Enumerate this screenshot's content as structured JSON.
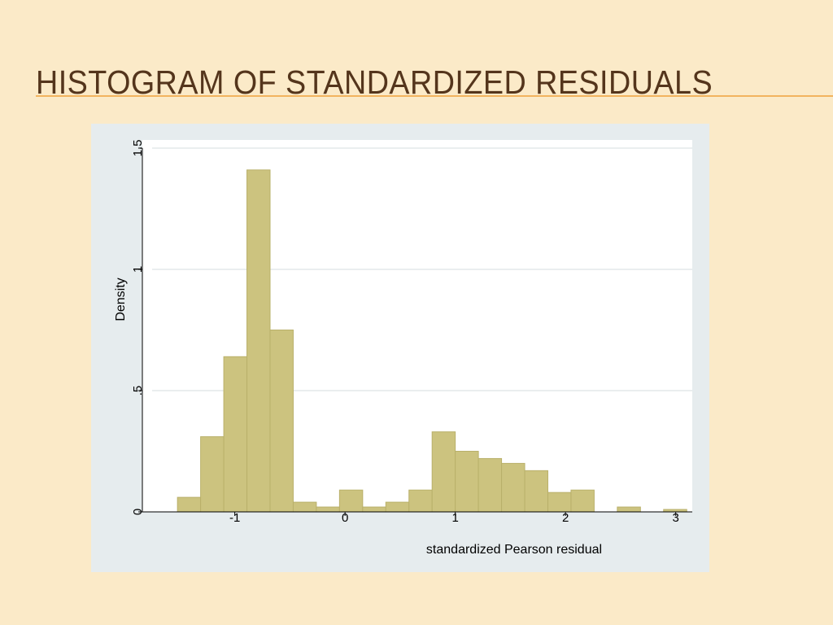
{
  "slide": {
    "title": "HISTOGRAM OF STANDARDIZED RESIDUALS"
  },
  "colors": {
    "background": "#fbeac8",
    "title": "#54351c",
    "accent_rule": "#f2b45f",
    "plot_frame": "#e6ecee",
    "plot_area": "#ffffff",
    "bar_fill": "#ccc37f",
    "bar_stroke": "#b9b06a"
  },
  "chart_data": {
    "type": "bar",
    "subtype": "histogram",
    "title": "",
    "xlabel": "standardized Pearson residual",
    "ylabel": "Density",
    "xlim": [
      -1.75,
      3.15
    ],
    "ylim": [
      0,
      1.5
    ],
    "xticks": [
      -1,
      0,
      1,
      2,
      3
    ],
    "xtick_labels": [
      "-1",
      "0",
      "1",
      "2",
      "3"
    ],
    "yticks": [
      0,
      0.5,
      1,
      1.5
    ],
    "ytick_labels": [
      "0",
      ".5",
      "1",
      "1.5"
    ],
    "grid": "horizontal",
    "bin_width": 0.21,
    "bins": [
      {
        "x0": -1.52,
        "x1": -1.31,
        "density": 0.06
      },
      {
        "x0": -1.31,
        "x1": -1.1,
        "density": 0.31
      },
      {
        "x0": -1.1,
        "x1": -0.89,
        "density": 0.64
      },
      {
        "x0": -0.89,
        "x1": -0.68,
        "density": 1.41
      },
      {
        "x0": -0.68,
        "x1": -0.47,
        "density": 0.75
      },
      {
        "x0": -0.47,
        "x1": -0.26,
        "density": 0.04
      },
      {
        "x0": -0.26,
        "x1": -0.05,
        "density": 0.02
      },
      {
        "x0": -0.05,
        "x1": 0.16,
        "density": 0.09
      },
      {
        "x0": 0.16,
        "x1": 0.37,
        "density": 0.02
      },
      {
        "x0": 0.37,
        "x1": 0.58,
        "density": 0.04
      },
      {
        "x0": 0.58,
        "x1": 0.79,
        "density": 0.09
      },
      {
        "x0": 0.79,
        "x1": 1.0,
        "density": 0.33
      },
      {
        "x0": 1.0,
        "x1": 1.21,
        "density": 0.25
      },
      {
        "x0": 1.21,
        "x1": 1.42,
        "density": 0.22
      },
      {
        "x0": 1.42,
        "x1": 1.63,
        "density": 0.2
      },
      {
        "x0": 1.63,
        "x1": 1.84,
        "density": 0.17
      },
      {
        "x0": 1.84,
        "x1": 2.05,
        "density": 0.08
      },
      {
        "x0": 2.05,
        "x1": 2.26,
        "density": 0.09
      },
      {
        "x0": 2.47,
        "x1": 2.68,
        "density": 0.02
      },
      {
        "x0": 2.89,
        "x1": 3.1,
        "density": 0.01
      }
    ]
  }
}
